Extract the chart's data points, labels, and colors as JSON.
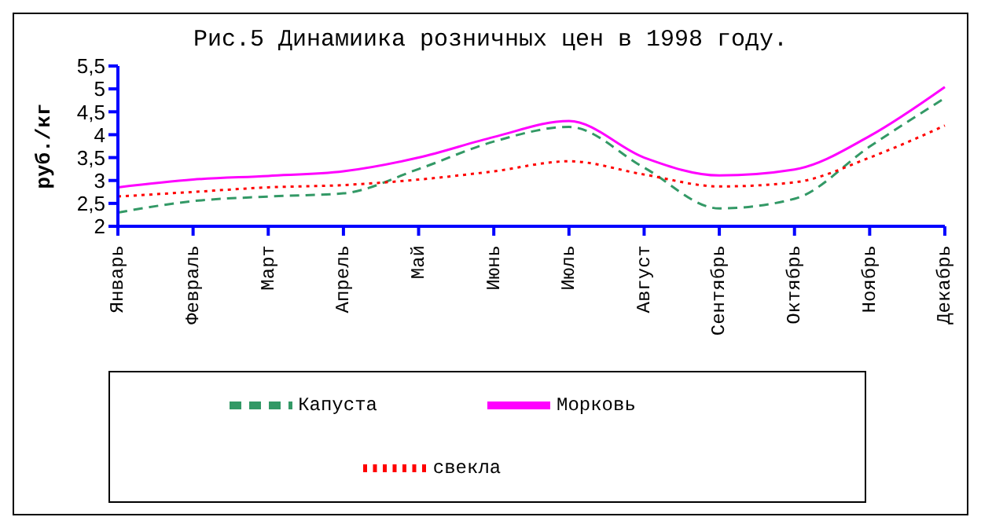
{
  "chart_data": {
    "type": "line",
    "title": "Рис.5 Динамиика розничных цен в 1998 году.",
    "ylabel": "руб./кг",
    "categories": [
      "Январь",
      "Февраль",
      "Март",
      "Апрель",
      "Май",
      "Июнь",
      "Июль",
      "Август",
      "Сентябрь",
      "Октябрь",
      "Ноябрь",
      "Декабрь"
    ],
    "series": [
      {
        "name": "Капуста",
        "color": "#339966",
        "line_style": "dashed",
        "values": [
          2.3,
          2.55,
          2.65,
          2.72,
          3.25,
          3.85,
          4.17,
          3.28,
          2.39,
          2.6,
          3.74,
          4.8
        ]
      },
      {
        "name": "Морковь",
        "color": "#ff00ff",
        "line_style": "solid",
        "values": [
          2.85,
          3.02,
          3.1,
          3.2,
          3.5,
          3.95,
          4.3,
          3.5,
          3.11,
          3.24,
          3.97,
          5.04
        ]
      },
      {
        "name": "свекла",
        "color": "#ff0000",
        "line_style": "dotted",
        "values": [
          2.65,
          2.75,
          2.85,
          2.9,
          3.02,
          3.2,
          3.42,
          3.13,
          2.87,
          2.96,
          3.5,
          4.2
        ]
      }
    ],
    "ylim": [
      2,
      5.5
    ],
    "yticks": [
      {
        "value": 2,
        "label": "2"
      },
      {
        "value": 2.5,
        "label": "2,5"
      },
      {
        "value": 3,
        "label": "3"
      },
      {
        "value": 3.5,
        "label": "3,5"
      },
      {
        "value": 4,
        "label": "4"
      },
      {
        "value": 4.5,
        "label": "4,5"
      },
      {
        "value": 5,
        "label": "5"
      },
      {
        "value": 5.5,
        "label": "5,5"
      }
    ],
    "grid": false,
    "legend": "bottom",
    "marker": "none"
  }
}
